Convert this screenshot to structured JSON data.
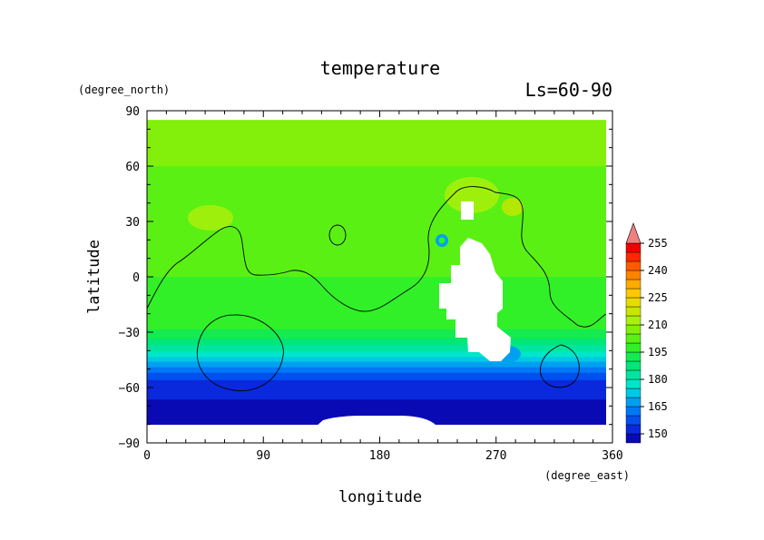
{
  "chart_data": {
    "type": "heatmap",
    "title": "temperature",
    "subtitle": "Ls=60-90",
    "xlabel": "longitude",
    "ylabel": "latitude",
    "x_unit": "(degree_east)",
    "y_unit": "(degree_north)",
    "xlim": [
      0,
      360
    ],
    "ylim": [
      -90,
      90
    ],
    "x_ticks": [
      "0",
      "90",
      "180",
      "270",
      "360"
    ],
    "y_ticks": [
      "90",
      "60",
      "30",
      "0",
      "−30",
      "−60",
      "−90"
    ],
    "colorbar": {
      "levels": [
        145,
        150,
        155,
        160,
        165,
        170,
        175,
        180,
        185,
        190,
        195,
        200,
        205,
        210,
        215,
        220,
        225,
        230,
        235,
        240,
        245,
        250,
        255,
        260
      ],
      "labels": [
        "150",
        "165",
        "180",
        "195",
        "210",
        "225",
        "240",
        "255"
      ],
      "colors": [
        "#0a0ab4",
        "#0a28dc",
        "#0050f0",
        "#0078f5",
        "#00a0f0",
        "#00c8e6",
        "#00e6c8",
        "#00e6a0",
        "#00e678",
        "#14eb50",
        "#32f028",
        "#5af014",
        "#82f00a",
        "#aaf00a",
        "#c8e600",
        "#e6dc00",
        "#ffc800",
        "#ffaa00",
        "#ff8200",
        "#ff5a00",
        "#ff2800",
        "#f00000",
        "#dc0000",
        "#f08080"
      ],
      "extend": "max"
    },
    "grid": false,
    "zonal_profile": [
      {
        "lat": 85,
        "value": 205
      },
      {
        "lat": 60,
        "value": 205
      },
      {
        "lat": 30,
        "value": 204
      },
      {
        "lat": 10,
        "value": 201
      },
      {
        "lat": 0,
        "value": 200
      },
      {
        "lat": -15,
        "value": 199
      },
      {
        "lat": -25,
        "value": 197
      },
      {
        "lat": -30,
        "value": 194
      },
      {
        "lat": -35,
        "value": 188
      },
      {
        "lat": -40,
        "value": 181
      },
      {
        "lat": -45,
        "value": 172
      },
      {
        "lat": -50,
        "value": 163
      },
      {
        "lat": -55,
        "value": 156
      },
      {
        "lat": -60,
        "value": 151
      },
      {
        "lat": -80,
        "value": 148
      }
    ],
    "contour_level": 200,
    "missing_value_regions": [
      "Tharsis highlands (no data)",
      "south polar cap (no data)"
    ]
  }
}
